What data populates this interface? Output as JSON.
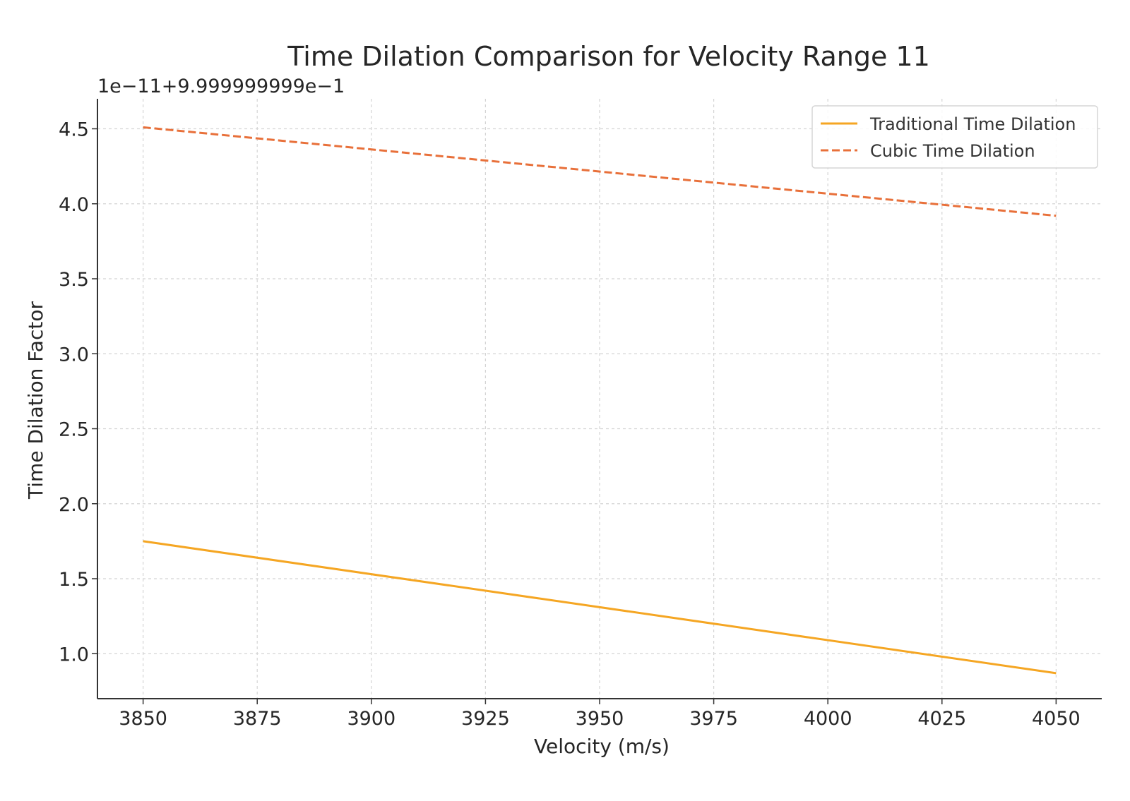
{
  "chart_data": {
    "type": "line",
    "title": "Time Dilation Comparison for Velocity Range 11",
    "offset_text": "1e−11+9.999999999e−1",
    "xlabel": "Velocity (m/s)",
    "ylabel": "Time Dilation Factor",
    "x_ticks": [
      3850,
      3875,
      3900,
      3925,
      3950,
      3975,
      4000,
      4025,
      4050
    ],
    "y_ticks": [
      1.0,
      1.5,
      2.0,
      2.5,
      3.0,
      3.5,
      4.0,
      4.5
    ],
    "y_tick_labels": [
      "1.0",
      "1.5",
      "2.0",
      "2.5",
      "3.0",
      "3.5",
      "4.0",
      "4.5"
    ],
    "xlim": [
      3840,
      4060
    ],
    "ylim": [
      0.7,
      4.7
    ],
    "grid": true,
    "legend_position": "top-right",
    "series": [
      {
        "name": "Traditional Time Dilation",
        "style": "solid",
        "color": "#f5a623",
        "x": [
          3850,
          4050
        ],
        "y": [
          1.75,
          0.87
        ]
      },
      {
        "name": "Cubic Time Dilation",
        "style": "dashed",
        "color": "#e8703a",
        "x": [
          3850,
          4050
        ],
        "y": [
          4.51,
          3.92
        ]
      }
    ]
  }
}
